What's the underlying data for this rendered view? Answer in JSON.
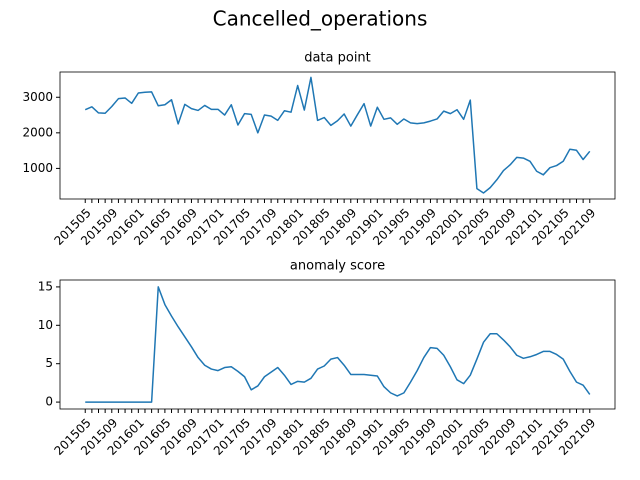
{
  "title": "Cancelled_operations",
  "chart_data": [
    {
      "type": "line",
      "title": "data point",
      "categories": [
        "201505",
        null,
        null,
        null,
        "201509",
        null,
        null,
        null,
        "201601",
        null,
        null,
        null,
        "201605",
        null,
        null,
        null,
        "201609",
        null,
        null,
        null,
        "201701",
        null,
        null,
        null,
        "201705",
        null,
        null,
        null,
        "201709",
        null,
        null,
        null,
        "201801",
        null,
        null,
        null,
        "201805",
        null,
        null,
        null,
        "201809",
        null,
        null,
        null,
        "201901",
        null,
        null,
        null,
        "201905",
        null,
        null,
        null,
        "201909",
        null,
        null,
        null,
        "202001",
        null,
        null,
        null,
        "202005",
        null,
        null,
        null,
        "202009",
        null,
        null,
        null,
        "202101",
        null,
        null,
        null,
        "202105",
        null,
        null,
        null,
        "202109"
      ],
      "values": [
        2650,
        2730,
        2560,
        2550,
        2740,
        2960,
        2980,
        2830,
        3120,
        3140,
        3150,
        2760,
        2790,
        2930,
        2250,
        2800,
        2680,
        2630,
        2770,
        2660,
        2660,
        2500,
        2790,
        2220,
        2540,
        2520,
        2000,
        2500,
        2470,
        2350,
        2620,
        2580,
        3330,
        2640,
        3560,
        2350,
        2430,
        2210,
        2340,
        2530,
        2190,
        2510,
        2820,
        2190,
        2720,
        2380,
        2420,
        2240,
        2390,
        2280,
        2260,
        2280,
        2330,
        2390,
        2610,
        2540,
        2650,
        2380,
        2920,
        430,
        310,
        460,
        680,
        940,
        1100,
        1310,
        1290,
        1200,
        920,
        820,
        1020,
        1080,
        1200,
        1540,
        1510,
        1250,
        1480
      ],
      "color": "#1f77b4",
      "ylim": [
        140,
        3710
      ],
      "yticks": [
        1000,
        2000,
        3000
      ]
    },
    {
      "type": "line",
      "title": "anomaly score",
      "categories": [
        "201505",
        null,
        null,
        null,
        "201509",
        null,
        null,
        null,
        "201601",
        null,
        null,
        null,
        "201605",
        null,
        null,
        null,
        "201609",
        null,
        null,
        null,
        "201701",
        null,
        null,
        null,
        "201705",
        null,
        null,
        null,
        "201709",
        null,
        null,
        null,
        "201801",
        null,
        null,
        null,
        "201805",
        null,
        null,
        null,
        "201809",
        null,
        null,
        null,
        "201901",
        null,
        null,
        null,
        "201905",
        null,
        null,
        null,
        "201909",
        null,
        null,
        null,
        "202001",
        null,
        null,
        null,
        "202005",
        null,
        null,
        null,
        "202009",
        null,
        null,
        null,
        "202101",
        null,
        null,
        null,
        "202105",
        null,
        null,
        null,
        "202109"
      ],
      "values": [
        0,
        0,
        0,
        0,
        0,
        0,
        0,
        0,
        0,
        0,
        0,
        15,
        12.7,
        11.2,
        9.8,
        8.5,
        7.2,
        5.8,
        4.8,
        4.3,
        4.1,
        4.5,
        4.6,
        4.0,
        3.3,
        1.6,
        2.1,
        3.3,
        3.9,
        4.5,
        3.5,
        2.3,
        2.7,
        2.6,
        3.1,
        4.3,
        4.7,
        5.6,
        5.8,
        4.8,
        3.6,
        3.6,
        3.6,
        3.5,
        3.4,
        2.0,
        1.2,
        0.8,
        1.2,
        2.6,
        4.1,
        5.8,
        7.1,
        7.0,
        6.1,
        4.6,
        2.9,
        2.4,
        3.5,
        5.6,
        7.8,
        8.9,
        8.9,
        8.1,
        7.2,
        6.1,
        5.7,
        5.9,
        6.2,
        6.6,
        6.6,
        6.2,
        5.6,
        4.0,
        2.6,
        2.2,
        1.0
      ],
      "color": "#1f77b4",
      "ylim": [
        -0.9,
        15.9
      ],
      "yticks": [
        0,
        5,
        10,
        15
      ]
    }
  ]
}
